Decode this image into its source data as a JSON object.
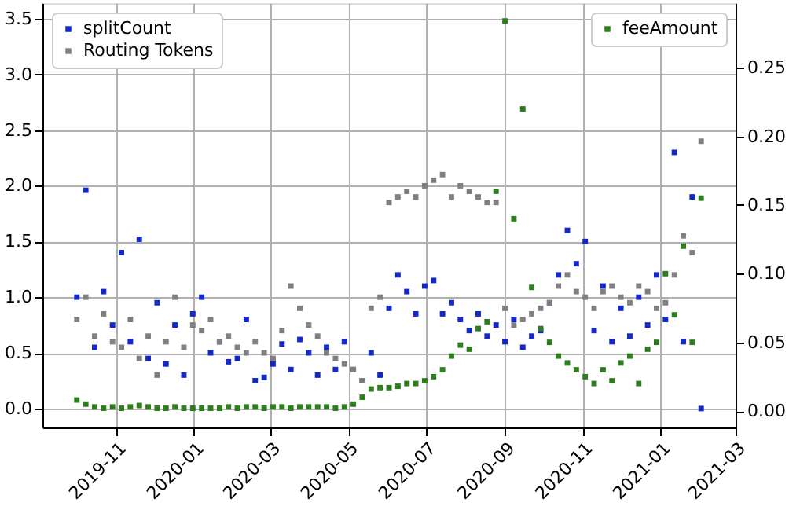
{
  "chart_data": {
    "type": "scatter",
    "marker": "square",
    "grid": true,
    "legend": "top left",
    "xlim": [
      "2019-09-04",
      "2021-03-01"
    ],
    "xticks": [
      "2019-11",
      "2020-01",
      "2020-03",
      "2020-05",
      "2020-07",
      "2020-09",
      "2020-11",
      "2021-01",
      "2021-03"
    ],
    "ylim": [
      -0.17,
      3.64
    ],
    "yticks": [
      {
        "value": 0,
        "label": "0.0"
      },
      {
        "value": 0.5,
        "label": "0.5"
      },
      {
        "value": 1,
        "label": "1.0"
      },
      {
        "value": 1.5,
        "label": "1.5"
      },
      {
        "value": 2,
        "label": "2.0"
      },
      {
        "value": 2.5,
        "label": "2.5"
      },
      {
        "value": 3,
        "label": "3.0"
      },
      {
        "value": 3.5,
        "label": "3.5"
      }
    ],
    "y2lim": [
      -0.012,
      0.297
    ],
    "y2ticks": [
      {
        "value": 0,
        "label": "0.00"
      },
      {
        "value": 0.05,
        "label": "0.05"
      },
      {
        "value": 0.1,
        "label": "0.10"
      },
      {
        "value": 0.15,
        "label": "0.15"
      },
      {
        "value": 0.2,
        "label": "0.20"
      },
      {
        "value": 0.25,
        "label": "0.25"
      }
    ],
    "x": [
      "2019-10-01",
      "2019-10-08",
      "2019-10-15",
      "2019-10-22",
      "2019-10-29",
      "2019-11-05",
      "2019-11-12",
      "2019-11-19",
      "2019-11-26",
      "2019-12-03",
      "2019-12-10",
      "2019-12-17",
      "2019-12-24",
      "2019-12-31",
      "2020-01-07",
      "2020-01-14",
      "2020-01-21",
      "2020-01-28",
      "2020-02-04",
      "2020-02-11",
      "2020-02-18",
      "2020-02-25",
      "2020-03-03",
      "2020-03-10",
      "2020-03-17",
      "2020-03-24",
      "2020-03-31",
      "2020-04-07",
      "2020-04-14",
      "2020-04-21",
      "2020-04-28",
      "2020-05-05",
      "2020-05-12",
      "2020-05-19",
      "2020-05-26",
      "2020-06-02",
      "2020-06-09",
      "2020-06-16",
      "2020-06-23",
      "2020-06-30",
      "2020-07-07",
      "2020-07-14",
      "2020-07-21",
      "2020-07-28",
      "2020-08-04",
      "2020-08-11",
      "2020-08-18",
      "2020-08-25",
      "2020-09-01",
      "2020-09-08",
      "2020-09-15",
      "2020-09-22",
      "2020-09-29",
      "2020-10-06",
      "2020-10-13",
      "2020-10-20",
      "2020-10-27",
      "2020-11-03",
      "2020-11-10",
      "2020-11-17",
      "2020-11-24",
      "2020-12-01",
      "2020-12-08",
      "2020-12-15",
      "2020-12-22",
      "2020-12-29",
      "2021-01-05",
      "2021-01-12",
      "2021-01-19",
      "2021-01-26",
      "2021-02-02"
    ],
    "series": [
      {
        "name": "splitCount",
        "color": "#1428c8",
        "values": [
          1.0,
          1.96,
          0.55,
          1.05,
          0.75,
          1.4,
          0.6,
          1.52,
          0.45,
          0.95,
          0.4,
          0.75,
          0.3,
          0.85,
          1.0,
          0.5,
          0.6,
          0.42,
          0.45,
          0.8,
          0.25,
          0.28,
          0.4,
          0.58,
          0.35,
          0.62,
          0.5,
          0.3,
          0.55,
          0.35,
          0.6,
          0.35,
          0.25,
          0.5,
          0.3,
          0.9,
          1.2,
          1.05,
          0.85,
          1.1,
          1.15,
          0.85,
          0.95,
          0.8,
          0.7,
          0.85,
          0.65,
          0.75,
          0.6,
          0.8,
          0.55,
          0.65,
          0.7,
          0.95,
          1.2,
          1.6,
          1.3,
          1.5,
          0.7,
          1.1,
          0.6,
          0.9,
          0.65,
          1.0,
          0.75,
          1.2,
          0.8,
          2.3,
          0.6,
          1.9,
          0.0
        ]
      },
      {
        "name": "Routing Tokens",
        "color": "#808080",
        "values": [
          0.8,
          1.0,
          0.65,
          0.85,
          0.6,
          0.55,
          0.8,
          0.45,
          0.65,
          0.3,
          0.6,
          1.0,
          0.55,
          0.75,
          0.7,
          0.8,
          0.6,
          0.65,
          0.55,
          0.5,
          0.6,
          0.5,
          0.45,
          0.7,
          1.1,
          0.9,
          0.75,
          0.65,
          0.5,
          0.45,
          0.4,
          0.35,
          0.25,
          0.9,
          1.0,
          1.85,
          1.9,
          1.95,
          1.9,
          2.0,
          2.05,
          2.1,
          1.9,
          2.0,
          1.95,
          1.9,
          1.85,
          1.85,
          0.9,
          0.75,
          0.8,
          0.85,
          0.9,
          0.95,
          1.1,
          1.2,
          1.05,
          1.0,
          0.9,
          1.05,
          1.1,
          1.0,
          0.95,
          1.1,
          1.05,
          0.9,
          0.95,
          1.2,
          1.55,
          1.4,
          2.4
        ]
      },
      {
        "name": "feeAmount",
        "color": "#2e7d1e",
        "axis": "y2",
        "values": [
          0.008,
          0.005,
          0.003,
          0.002,
          0.003,
          0.002,
          0.003,
          0.004,
          0.003,
          0.002,
          0.002,
          0.003,
          0.002,
          0.002,
          0.002,
          0.002,
          0.002,
          0.003,
          0.002,
          0.003,
          0.003,
          0.002,
          0.003,
          0.003,
          0.002,
          0.003,
          0.003,
          0.003,
          0.003,
          0.002,
          0.003,
          0.005,
          0.01,
          0.016,
          0.017,
          0.017,
          0.018,
          0.02,
          0.02,
          0.022,
          0.025,
          0.03,
          0.04,
          0.048,
          0.045,
          0.06,
          0.065,
          0.16,
          0.284,
          0.14,
          0.22,
          0.09,
          0.06,
          0.05,
          0.04,
          0.035,
          0.03,
          0.025,
          0.02,
          0.03,
          0.022,
          0.035,
          0.04,
          0.02,
          0.045,
          0.05,
          0.1,
          0.07,
          0.12,
          0.05,
          0.155
        ]
      }
    ]
  }
}
